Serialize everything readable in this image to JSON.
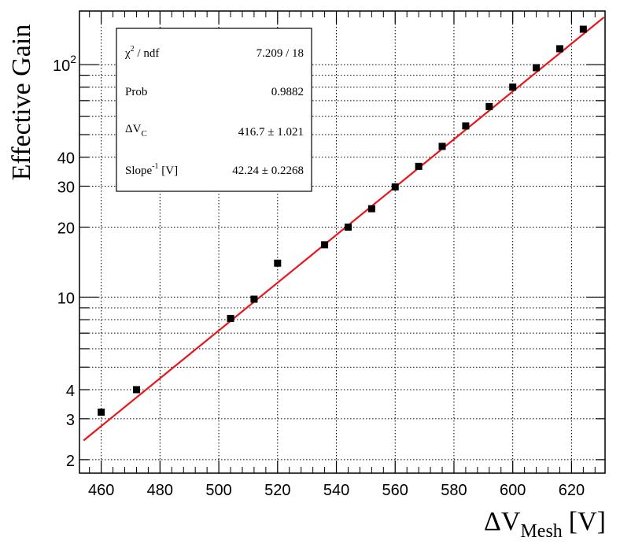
{
  "chart_data": {
    "type": "scatter",
    "title": "",
    "xlabel": "ΔV",
    "xlabel_sub": "Mesh",
    "xlabel_unit": "[V]",
    "ylabel": "Effective Gain",
    "xlim": [
      452.6,
      631.4
    ],
    "ylim": [
      1.75,
      170
    ],
    "yscale": "log",
    "grid": true,
    "x_ticks": [
      460,
      480,
      500,
      520,
      540,
      560,
      580,
      600,
      620
    ],
    "y_ticks": [
      {
        "value": 2,
        "label": "2"
      },
      {
        "value": 3,
        "label": "3"
      },
      {
        "value": 4,
        "label": "4"
      },
      {
        "value": 10,
        "label": "10"
      },
      {
        "value": 20,
        "label": "20"
      },
      {
        "value": 30,
        "label": "30"
      },
      {
        "value": 40,
        "label": "40"
      },
      {
        "value": 100,
        "label": "10",
        "sup": "2"
      }
    ],
    "points": [
      {
        "x": 460,
        "y": 3.2
      },
      {
        "x": 472,
        "y": 4.0
      },
      {
        "x": 504,
        "y": 8.1
      },
      {
        "x": 512,
        "y": 9.8
      },
      {
        "x": 520,
        "y": 14.0
      },
      {
        "x": 536,
        "y": 16.8
      },
      {
        "x": 544,
        "y": 20.0
      },
      {
        "x": 552,
        "y": 24.0
      },
      {
        "x": 560,
        "y": 29.8
      },
      {
        "x": 568,
        "y": 36.5
      },
      {
        "x": 576,
        "y": 44.5
      },
      {
        "x": 584,
        "y": 54.5
      },
      {
        "x": 592,
        "y": 66.0
      },
      {
        "x": 600,
        "y": 80.0
      },
      {
        "x": 608,
        "y": 97.0
      },
      {
        "x": 616,
        "y": 117.0
      },
      {
        "x": 624,
        "y": 142.0
      }
    ],
    "fit": {
      "model": "exp((x - ΔV_C) / slope)",
      "dVc": 416.7,
      "inv_slope": 42.24,
      "color": "#e8161b",
      "x_range": [
        454,
        631
      ]
    },
    "marker_color": "#000000"
  },
  "stats_box": {
    "rows": [
      {
        "label": "χ",
        "label_sup": "2",
        "label_rest": " / ndf",
        "value": "7.209 / 18"
      },
      {
        "label": "Prob",
        "value": "0.9882"
      },
      {
        "label": "ΔV",
        "label_sub": "C",
        "value": "416.7 ± 1.021"
      },
      {
        "label": "Slope",
        "label_sup": "-1",
        "label_rest": " [V]",
        "value": "42.24 ± 0.2268"
      }
    ]
  }
}
